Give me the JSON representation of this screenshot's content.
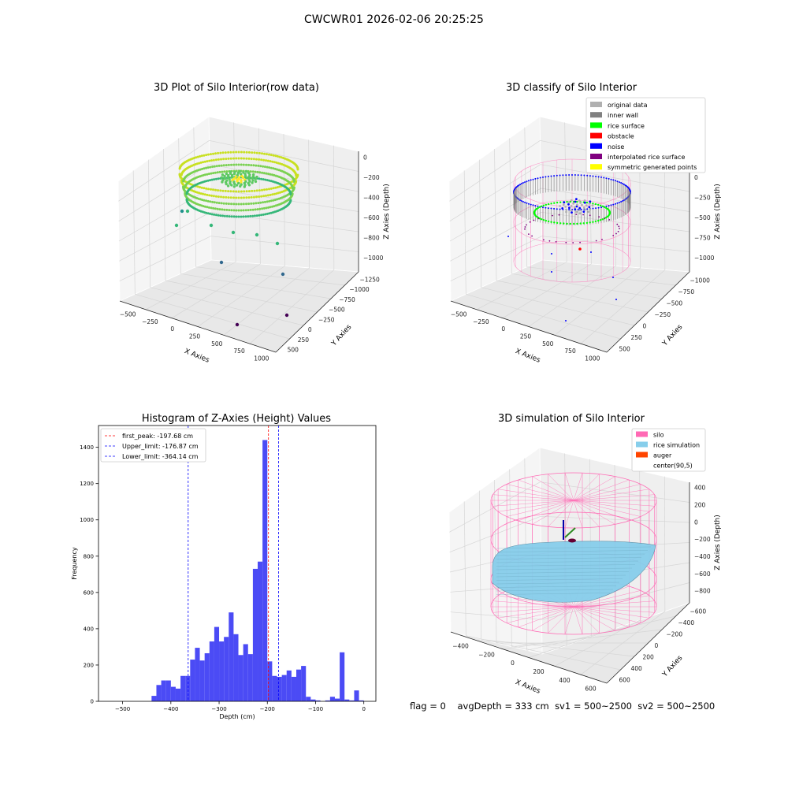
{
  "figure": {
    "suptitle": "CWCWR01 2026-02-06 20:25:25"
  },
  "colors": {
    "hist_bar": "#4b4bf5",
    "first_peak": "#ff0000",
    "limits": "#0000ff",
    "original": "#b0b0b0",
    "inner_wall": "#808080",
    "rice_surface": "#00ff00",
    "obstacle": "#ff0000",
    "noise": "#0000ff",
    "interpolated": "#800080",
    "symmetric": "#ffff00",
    "silo": "#ff69b4",
    "rice_sim": "#87ceeb",
    "auger": "#ff4500"
  },
  "panels": {
    "raw": {
      "title": "3D Plot of Silo Interior(row data)",
      "xlabel": "X Axies",
      "ylabel": "Y Axies",
      "zlabel": "Z Axies (Depth)",
      "xticks": [
        "−500",
        "−250",
        "0",
        "250",
        "500",
        "750",
        "1000"
      ],
      "yticks": [
        "500",
        "250",
        "0",
        "−250",
        "−500",
        "−750",
        "−1000",
        "−1250"
      ],
      "zticks": [
        "0",
        "−200",
        "−400",
        "−600",
        "−800",
        "−1000"
      ]
    },
    "classify": {
      "title": "3D classify of Silo Interior",
      "xlabel": "X Axies",
      "ylabel": "Y Axies",
      "zlabel": "Z Axies (Depth)",
      "xticks": [
        "−500",
        "−250",
        "0",
        "250",
        "500",
        "750",
        "1000"
      ],
      "yticks": [
        "500",
        "250",
        "0",
        "−250",
        "−500",
        "−750",
        "−1000"
      ],
      "zticks": [
        "250",
        "0",
        "−250",
        "−500",
        "−750",
        "−1000"
      ],
      "legend": [
        "original data",
        "inner wall",
        "rice surface",
        "obstacle",
        "noise",
        "interpolated rice surface",
        "symmetric generated points"
      ]
    },
    "simulation": {
      "title": "3D simulation of Silo Interior",
      "xlabel": "X Axies",
      "ylabel": "Y Axies",
      "zlabel": "Z Axies (Depth)",
      "xticks": [
        "−400",
        "−200",
        "0",
        "200",
        "400",
        "600"
      ],
      "yticks": [
        "600",
        "400",
        "200",
        "0",
        "−200",
        "−400",
        "−600"
      ],
      "zticks": [
        "400",
        "200",
        "0",
        "−200",
        "−400",
        "−600",
        "−800"
      ],
      "legend": [
        "silo",
        "rice simulation",
        "auger",
        "center(90,5)"
      ]
    }
  },
  "status": {
    "flag": "flag = 0",
    "avg_depth": "avgDepth = 333 cm",
    "sv1": "sv1 = 500~2500",
    "sv2": "sv2 = 500~2500"
  },
  "chart_data": [
    {
      "type": "bar",
      "title": "Histogram of Z-Axies (Height) Values",
      "xlabel": "Depth (cm)",
      "ylabel": "Frequency",
      "xlim": [
        -550,
        25
      ],
      "ylim": [
        0,
        1520
      ],
      "xticks": [
        -500,
        -400,
        -300,
        -200,
        -100,
        0
      ],
      "yticks": [
        0,
        200,
        400,
        600,
        800,
        1000,
        1200,
        1400
      ],
      "bin_width": 10,
      "bin_starts": [
        -440,
        -430,
        -420,
        -410,
        -400,
        -390,
        -380,
        -370,
        -360,
        -350,
        -340,
        -330,
        -320,
        -310,
        -300,
        -290,
        -280,
        -270,
        -260,
        -250,
        -240,
        -230,
        -220,
        -210,
        -200,
        -190,
        -180,
        -170,
        -160,
        -150,
        -140,
        -130,
        -120,
        -110,
        -100,
        -90,
        -80,
        -70,
        -60,
        -50,
        -40,
        -30,
        -20,
        -10,
        0
      ],
      "values": [
        30,
        90,
        115,
        115,
        80,
        70,
        140,
        140,
        230,
        295,
        225,
        265,
        330,
        410,
        330,
        355,
        490,
        370,
        255,
        315,
        260,
        730,
        770,
        1440,
        220,
        140,
        135,
        145,
        170,
        135,
        175,
        195,
        25,
        10,
        5,
        0,
        5,
        25,
        15,
        270,
        10,
        5,
        60,
        5,
        0
      ],
      "vlines": [
        {
          "label": "first_peak: -197.68 cm",
          "x": -197.68,
          "style": "dashed",
          "color": "red"
        },
        {
          "label": "Upper_limit: -176.87 cm",
          "x": -176.87,
          "style": "dashed",
          "color": "blue"
        },
        {
          "label": "Lower_limit: -364.14 cm",
          "x": -364.14,
          "style": "dashed",
          "color": "blue"
        }
      ],
      "legend_position": "upper-left"
    }
  ]
}
